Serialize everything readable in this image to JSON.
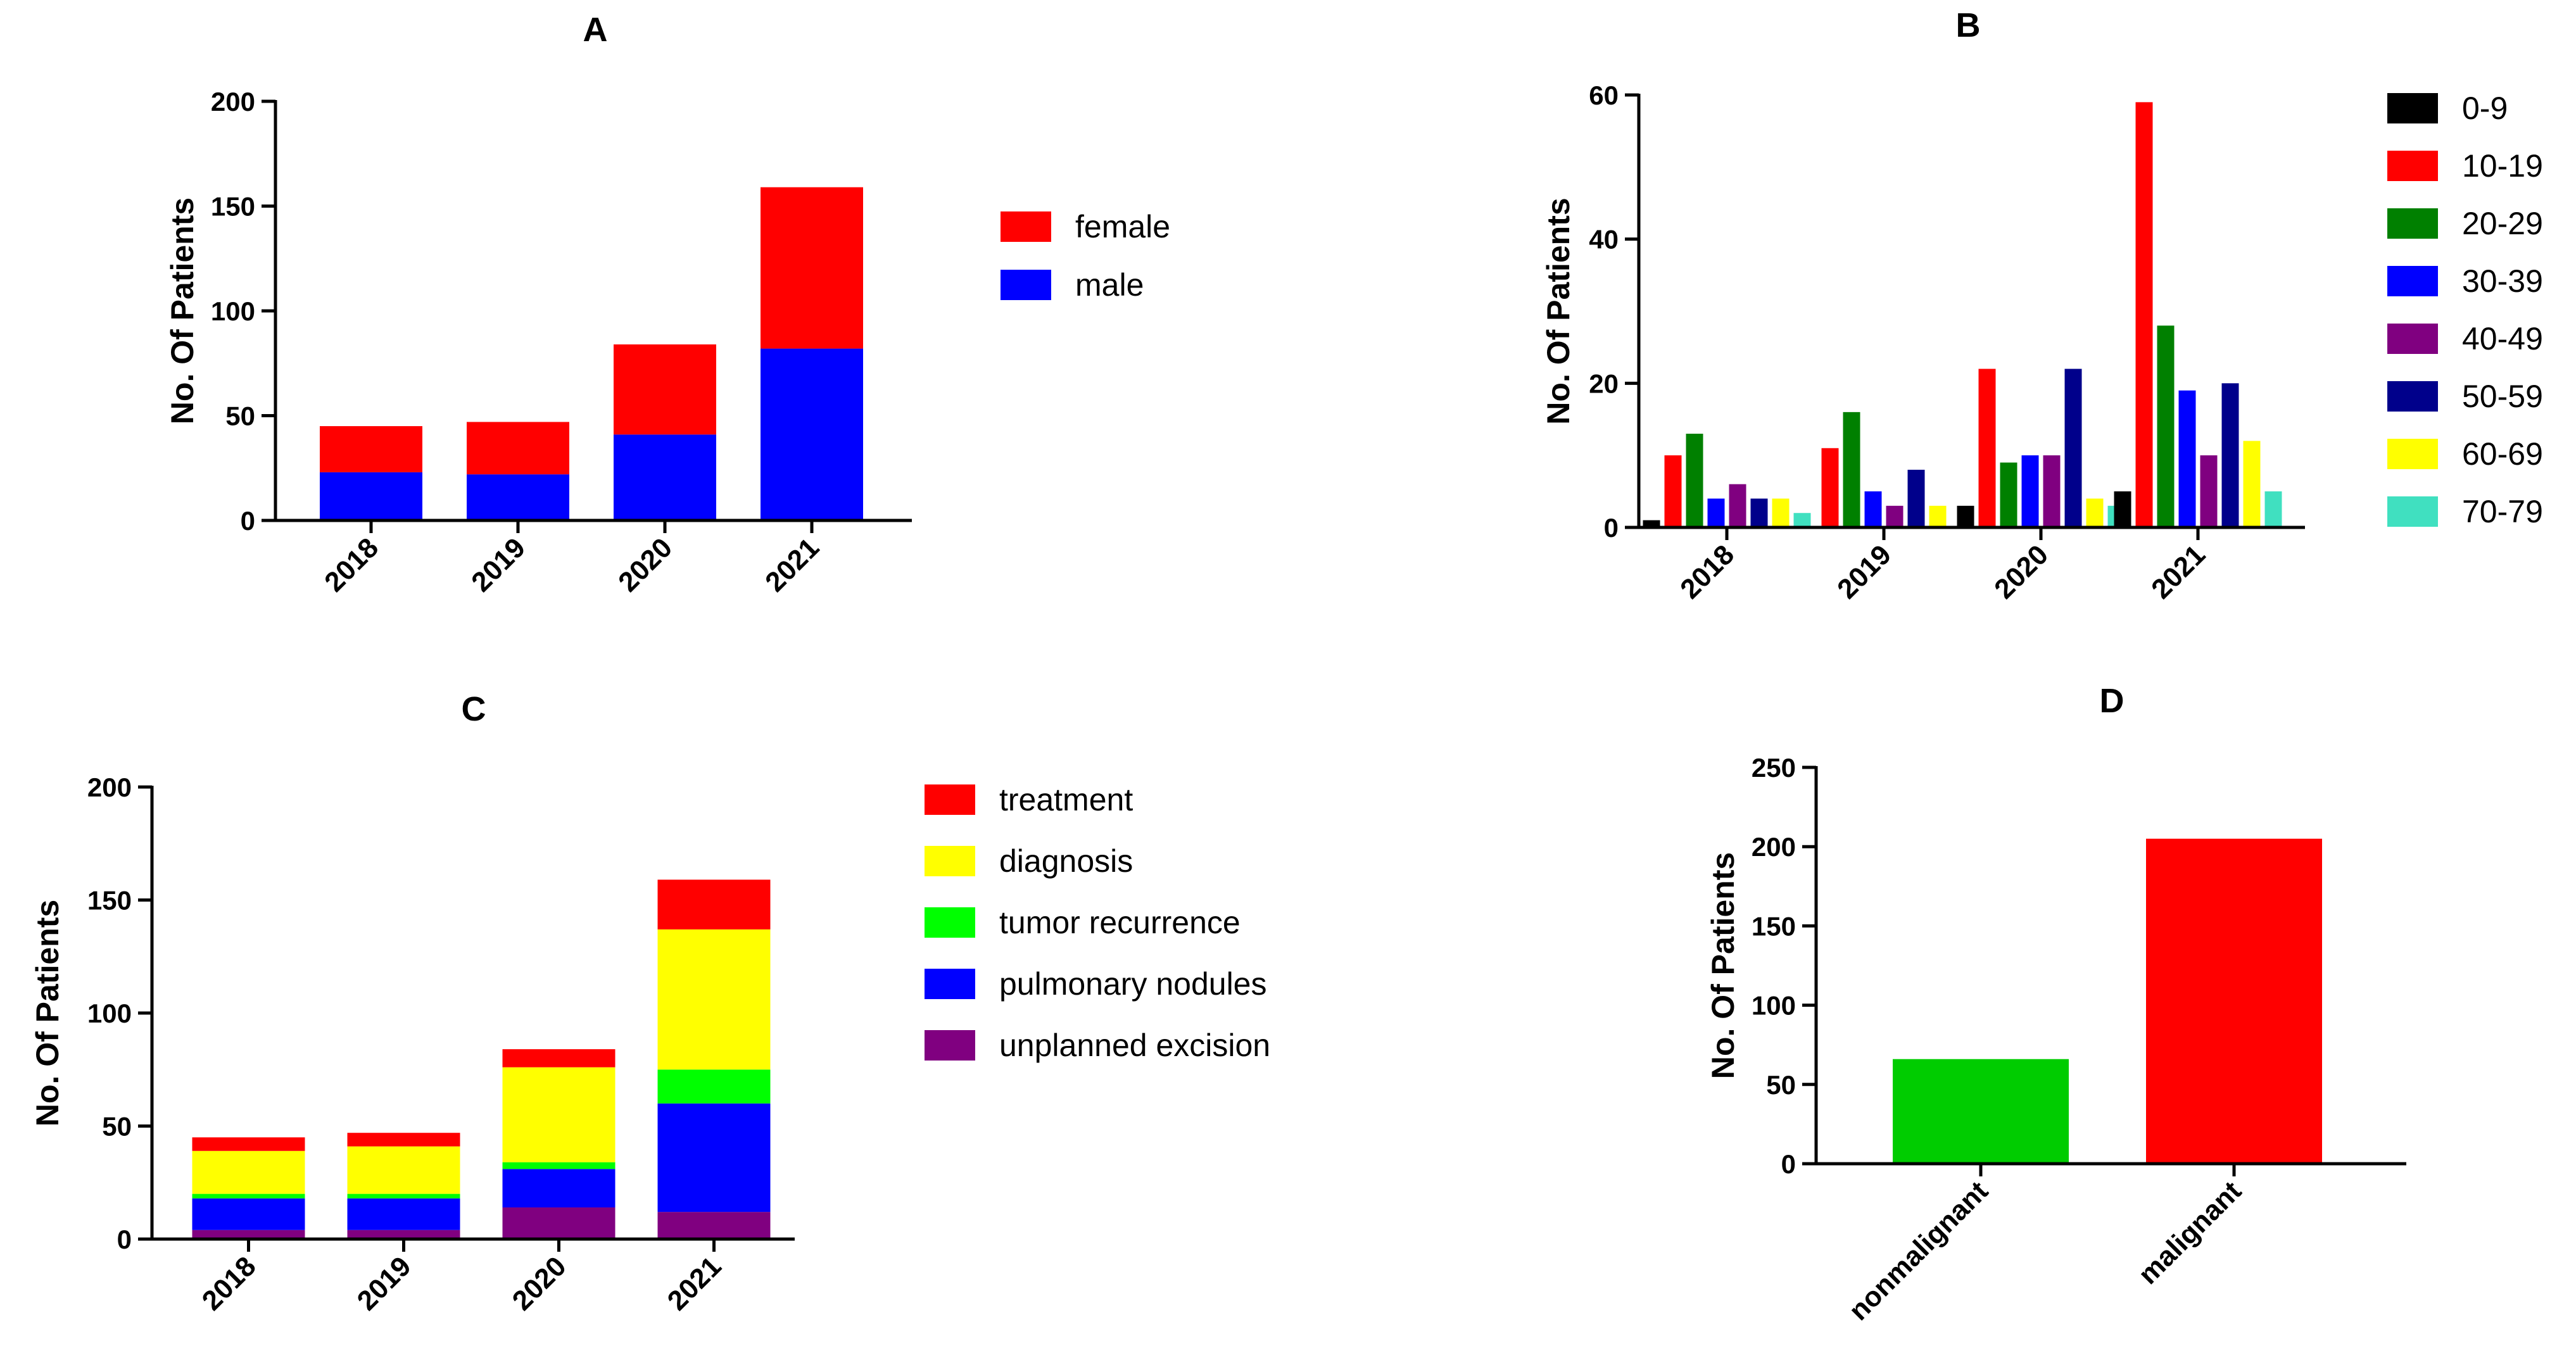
{
  "chart_data": [
    {
      "id": "A",
      "type": "bar",
      "stacked": true,
      "title": "A",
      "ylabel": "No. Of Patients",
      "xlabel": "",
      "ylim": [
        0,
        200
      ],
      "yticks": [
        0,
        50,
        100,
        150,
        200
      ],
      "categories": [
        "2018",
        "2019",
        "2020",
        "2021"
      ],
      "series": [
        {
          "name": "male",
          "color": "#0000ff",
          "values": [
            23,
            22,
            41,
            82
          ]
        },
        {
          "name": "female",
          "color": "#ff0000",
          "values": [
            22,
            25,
            43,
            77
          ]
        }
      ],
      "legend_order": [
        "female",
        "male"
      ],
      "legend_position": "right"
    },
    {
      "id": "B",
      "type": "bar",
      "stacked": false,
      "title": "B",
      "ylabel": "No. Of Patients",
      "xlabel": "",
      "ylim": [
        0,
        60
      ],
      "yticks": [
        0,
        20,
        40,
        60
      ],
      "categories": [
        "2018",
        "2019",
        "2020",
        "2021"
      ],
      "series": [
        {
          "name": "0-9",
          "color": "#000000",
          "values": [
            1,
            0,
            3,
            5
          ]
        },
        {
          "name": "10-19",
          "color": "#ff0000",
          "values": [
            10,
            11,
            22,
            59
          ]
        },
        {
          "name": "20-29",
          "color": "#008000",
          "values": [
            13,
            16,
            9,
            28
          ]
        },
        {
          "name": "30-39",
          "color": "#0000ff",
          "values": [
            4,
            5,
            10,
            19
          ]
        },
        {
          "name": "40-49",
          "color": "#800080",
          "values": [
            6,
            3,
            10,
            10
          ]
        },
        {
          "name": "50-59",
          "color": "#00008b",
          "values": [
            4,
            8,
            22,
            20
          ]
        },
        {
          "name": "60-69",
          "color": "#ffff00",
          "values": [
            4,
            3,
            4,
            12
          ]
        },
        {
          "name": "70-79",
          "color": "#40e0c0",
          "values": [
            2,
            0,
            3,
            5
          ]
        }
      ],
      "legend_position": "right"
    },
    {
      "id": "C",
      "type": "bar",
      "stacked": true,
      "title": "C",
      "ylabel": "No. Of Patients",
      "xlabel": "",
      "ylim": [
        0,
        200
      ],
      "yticks": [
        0,
        50,
        100,
        150,
        200
      ],
      "categories": [
        "2018",
        "2019",
        "2020",
        "2021"
      ],
      "series": [
        {
          "name": "unplanned excision",
          "color": "#800080",
          "values": [
            4,
            4,
            14,
            12
          ]
        },
        {
          "name": "pulmonary nodules",
          "color": "#0000ff",
          "values": [
            14,
            14,
            17,
            48
          ]
        },
        {
          "name": "tumor recurrence",
          "color": "#00ff00",
          "values": [
            2,
            2,
            3,
            15
          ]
        },
        {
          "name": "diagnosis",
          "color": "#ffff00",
          "values": [
            19,
            21,
            42,
            62
          ]
        },
        {
          "name": "treatment",
          "color": "#ff0000",
          "values": [
            6,
            6,
            8,
            22
          ]
        }
      ],
      "legend_order": [
        "treatment",
        "diagnosis",
        "tumor recurrence",
        "pulmonary nodules",
        "unplanned excision"
      ],
      "legend_position": "right"
    },
    {
      "id": "D",
      "type": "bar",
      "stacked": false,
      "title": "D",
      "ylabel": "No. Of Patients",
      "xlabel": "",
      "ylim": [
        0,
        250
      ],
      "yticks": [
        0,
        50,
        100,
        150,
        200,
        250
      ],
      "categories": [
        "nonmalignant",
        "malignant"
      ],
      "series": [
        {
          "name": "patients",
          "values": [
            66,
            205
          ],
          "colors": [
            "#00cc00",
            "#ff0000"
          ]
        }
      ]
    }
  ]
}
